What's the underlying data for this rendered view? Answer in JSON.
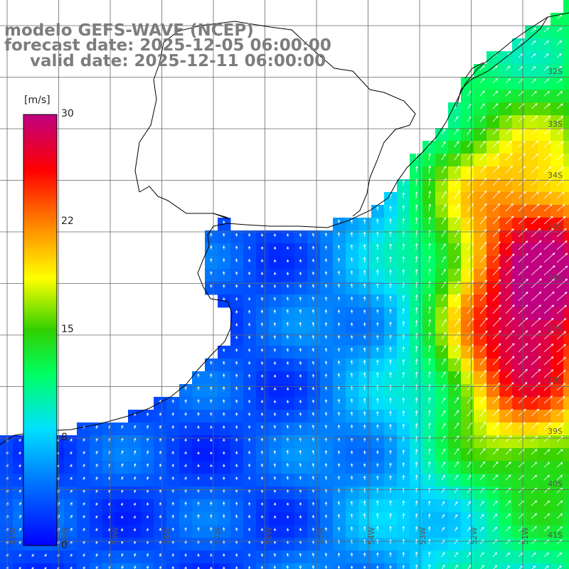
{
  "header": {
    "model": "modelo GEFS-WAVE (NCEP)",
    "forecast": "forecast date: 2025-12-05 06:00:00",
    "valid": "valid date: 2025-12-11 06:00:00"
  },
  "colorbar": {
    "unit": "[m/s]",
    "ticks": [
      "30",
      "22",
      "15",
      "8",
      "0"
    ],
    "range": [
      0,
      30
    ],
    "colors": [
      "#0000ff",
      "#0070ff",
      "#00e0ff",
      "#00ff60",
      "#30d000",
      "#ffff00",
      "#ff8000",
      "#ff0000",
      "#c00080"
    ]
  },
  "map": {
    "lat_labels": [
      "32S",
      "33S",
      "34S",
      "35S",
      "36S",
      "37S",
      "38S",
      "39S",
      "40S",
      "41S"
    ],
    "lon_labels": [
      "61W",
      "60W",
      "59W",
      "58W",
      "57W",
      "56W",
      "55W",
      "54W",
      "53W",
      "52W",
      "51W"
    ]
  }
}
